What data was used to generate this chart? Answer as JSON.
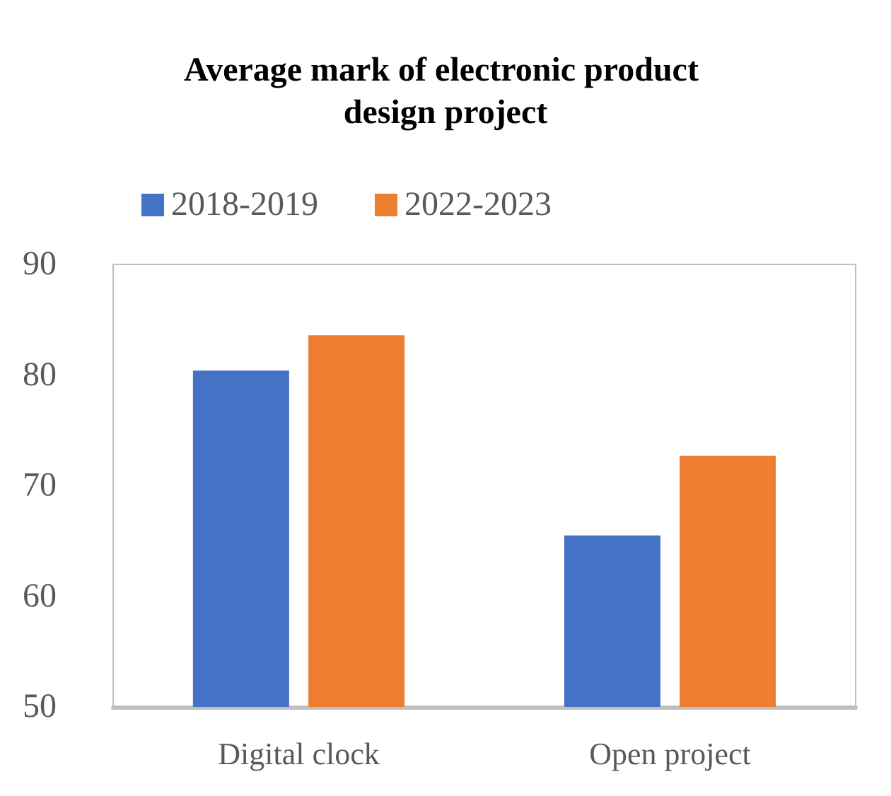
{
  "chart_data": {
    "type": "bar",
    "title": "Average mark of electronic product design project",
    "categories": [
      "Digital clock",
      "Open project"
    ],
    "series": [
      {
        "name": "2018-2019",
        "color": "#4472c4",
        "values": [
          80.4,
          65.5
        ]
      },
      {
        "name": "2022-2023",
        "color": "#ed7d31",
        "values": [
          83.6,
          72.7
        ]
      }
    ],
    "ylim": [
      50,
      90
    ],
    "yticks": [
      50,
      60,
      70,
      80,
      90
    ],
    "grid": false,
    "legend": "top left"
  }
}
